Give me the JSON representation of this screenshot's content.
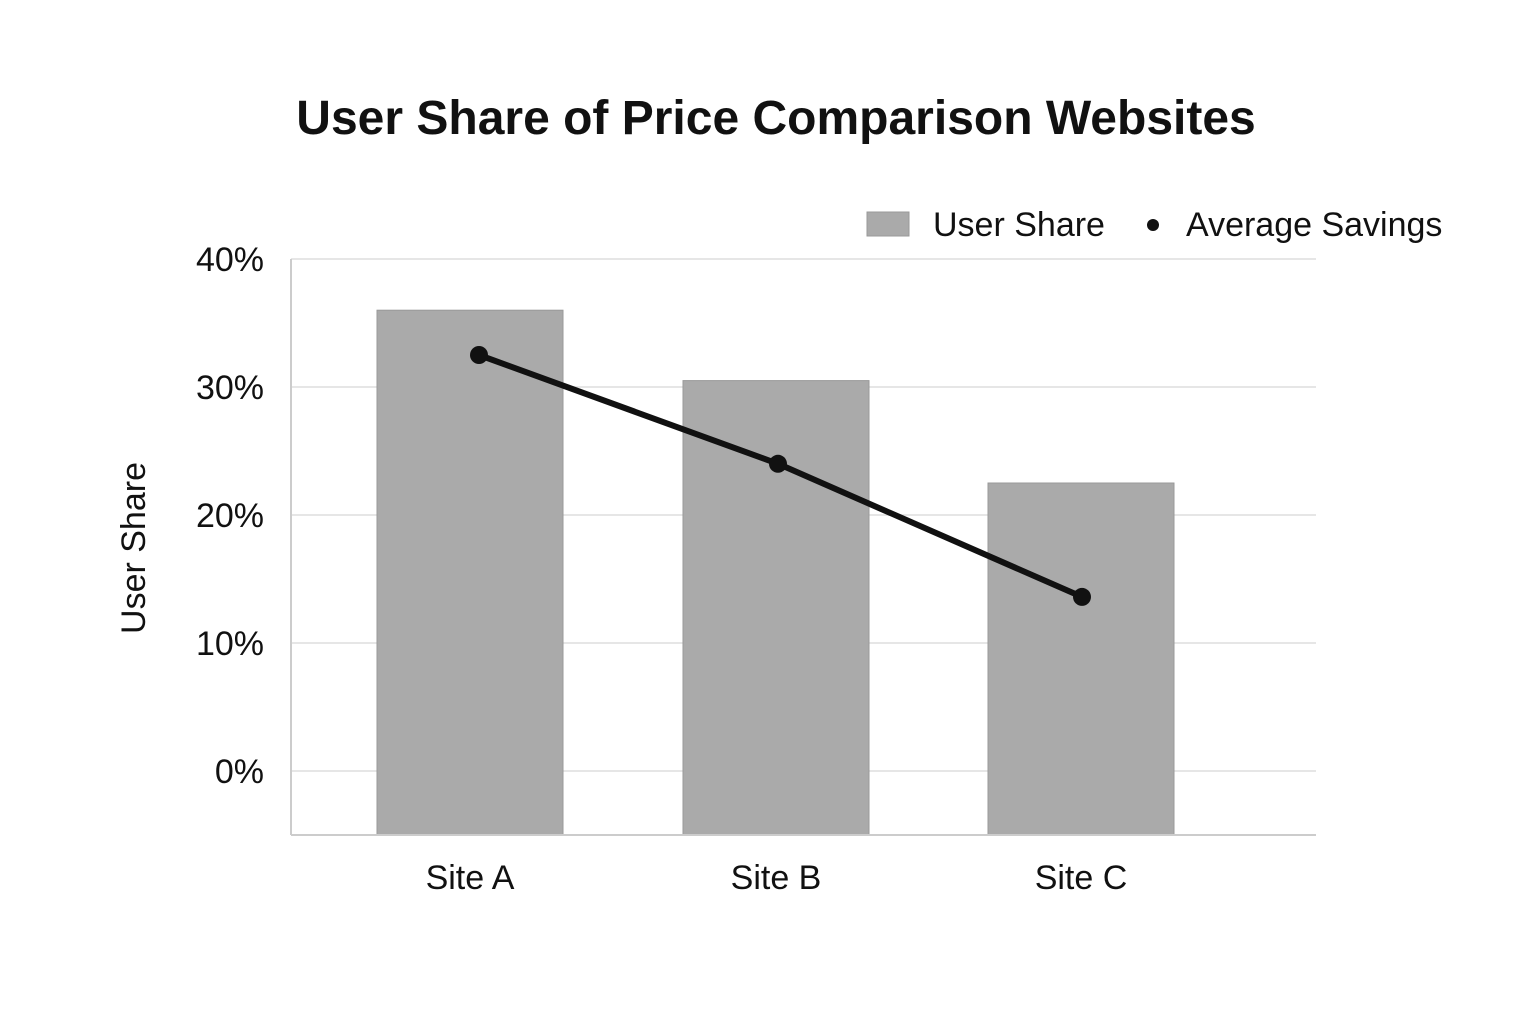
{
  "chart_data": {
    "type": "bar",
    "title": "User Share of Price Comparison Websites",
    "xlabel": "",
    "ylabel": "User Share",
    "categories": [
      "Site A",
      "Site B",
      "Site C"
    ],
    "ylim": [
      -5,
      40
    ],
    "yticks": [
      0,
      10,
      20,
      30,
      40
    ],
    "ytick_labels": [
      "0%",
      "10%",
      "20%",
      "30%",
      "40%"
    ],
    "grid": true,
    "legend_position": "top-right",
    "series": [
      {
        "name": "User Share",
        "kind": "bar",
        "color": "#aaaaaa",
        "values": [
          36,
          30.5,
          22.5
        ]
      },
      {
        "name": "Average Savings",
        "kind": "line",
        "color": "#111111",
        "values": [
          32.5,
          24,
          13.6
        ]
      }
    ]
  }
}
